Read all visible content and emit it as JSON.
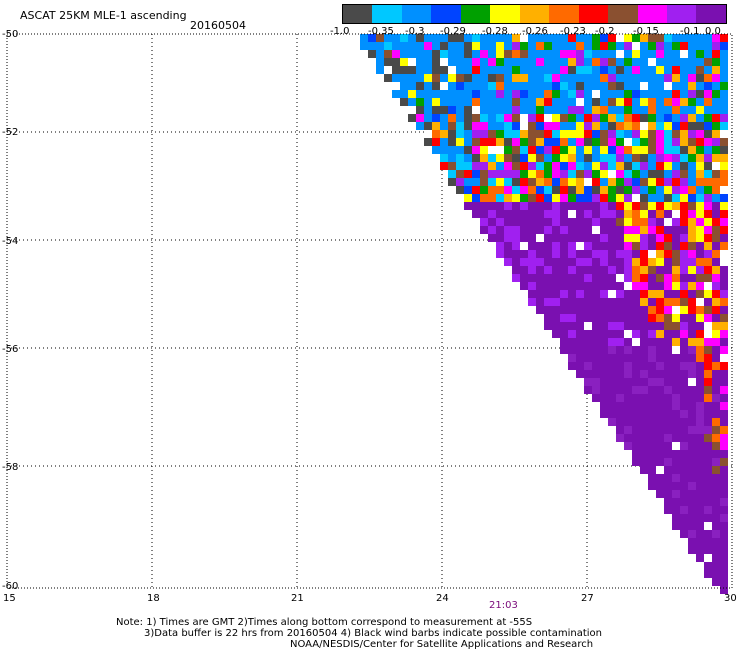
{
  "header": {
    "title": "ASCAT 25KM MLE-1 ascending",
    "date": "20160504"
  },
  "colorbar": {
    "colors": [
      "#4a4a4a",
      "#00c8ff",
      "#0090ff",
      "#0044ff",
      "#00a000",
      "#ffff00",
      "#ffb000",
      "#ff6a00",
      "#ff0000",
      "#8a5030",
      "#ff00ff",
      "#a020f0",
      "#7a10b0"
    ],
    "labels": [
      "-1.0",
      "-0.35",
      "-0.3",
      "-0.29",
      "-0.28",
      "-0.26",
      "-0.23",
      "-0.2",
      "-0.15",
      "-0.1",
      "0.0"
    ]
  },
  "axes": {
    "y_labels": [
      "-50",
      "-52",
      "-54",
      "-56",
      "-58",
      "-60"
    ],
    "x_labels": [
      "15",
      "18",
      "21",
      "24",
      "27",
      "30"
    ]
  },
  "time_label": "21:03",
  "notes": {
    "line1": "Note: 1) Times are GMT 2)Times along bottom correspond to measurement at -55S",
    "line2": "3)Data buffer is 22 hrs from 20160504 4) Black wind barbs indicate possible contamination",
    "line3": "NOAA/NESDIS/Center for Satellite Applications and Research"
  }
}
